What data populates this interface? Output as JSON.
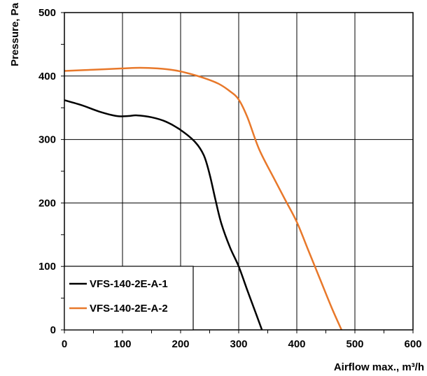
{
  "chart_data": {
    "type": "line",
    "xlabel": "Airflow max., m³/h",
    "ylabel": "Pressure, Pa",
    "xlim": [
      0,
      600
    ],
    "ylim": [
      0,
      500
    ],
    "x_ticks": [
      "0",
      "100",
      "200",
      "300",
      "400",
      "500",
      "600"
    ],
    "y_ticks": [
      "0",
      "100",
      "200",
      "300",
      "400",
      "500"
    ],
    "x_tick_values": [
      0,
      100,
      200,
      300,
      400,
      500,
      600
    ],
    "y_tick_values": [
      0,
      100,
      200,
      300,
      400,
      500
    ],
    "minor_x_step": 50,
    "minor_y_step": 50,
    "grid": true,
    "legend_position": "bottom-left",
    "series": [
      {
        "name": "VFS-140-2E-A-1",
        "color": "#000000",
        "points": [
          [
            0,
            362
          ],
          [
            30,
            354
          ],
          [
            60,
            344
          ],
          [
            90,
            337
          ],
          [
            110,
            337
          ],
          [
            125,
            338
          ],
          [
            150,
            335
          ],
          [
            175,
            328
          ],
          [
            200,
            315
          ],
          [
            225,
            296
          ],
          [
            240,
            275
          ],
          [
            250,
            245
          ],
          [
            260,
            205
          ],
          [
            270,
            168
          ],
          [
            285,
            130
          ],
          [
            300,
            100
          ],
          [
            315,
            62
          ],
          [
            330,
            25
          ],
          [
            340,
            0
          ]
        ]
      },
      {
        "name": "VFS-140-2E-A-2",
        "color": "#E8782A",
        "points": [
          [
            0,
            408
          ],
          [
            50,
            410
          ],
          [
            100,
            412
          ],
          [
            130,
            413
          ],
          [
            160,
            412
          ],
          [
            190,
            409
          ],
          [
            210,
            405
          ],
          [
            240,
            397
          ],
          [
            265,
            388
          ],
          [
            285,
            376
          ],
          [
            300,
            363
          ],
          [
            315,
            335
          ],
          [
            335,
            285
          ],
          [
            360,
            240
          ],
          [
            380,
            205
          ],
          [
            400,
            170
          ],
          [
            420,
            125
          ],
          [
            440,
            80
          ],
          [
            460,
            35
          ],
          [
            477,
            0
          ]
        ]
      }
    ]
  }
}
